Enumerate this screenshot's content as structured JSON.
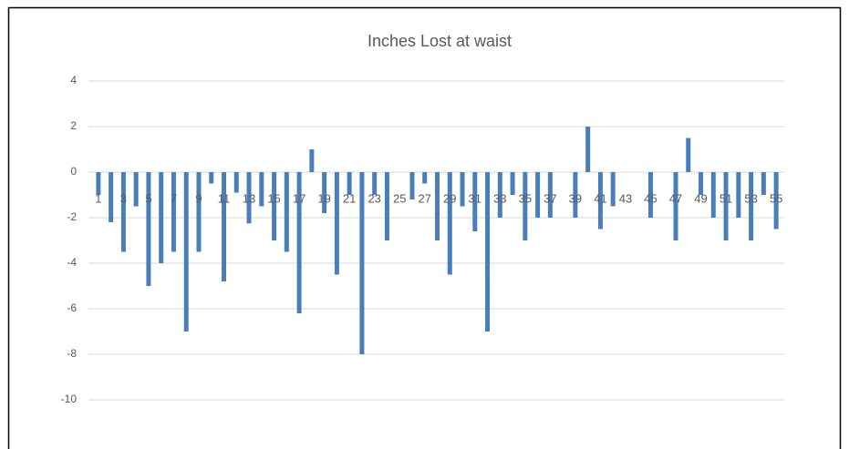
{
  "chart_data": {
    "type": "bar",
    "title": "Inches Lost at waist",
    "categories": [
      "1",
      null,
      "3",
      null,
      "5",
      null,
      "7",
      null,
      "9",
      null,
      "11",
      null,
      "13",
      null,
      "15",
      null,
      "17",
      null,
      "19",
      null,
      "21",
      null,
      "23",
      null,
      "25",
      null,
      "27",
      null,
      "29",
      null,
      "31",
      null,
      "33",
      null,
      "35",
      null,
      "37",
      null,
      "39",
      null,
      "41",
      null,
      "43",
      null,
      "45",
      null,
      "47",
      null,
      "49",
      null,
      "51",
      null,
      "53",
      null,
      "55"
    ],
    "values": [
      -1,
      -2.2,
      -3.5,
      -1.5,
      -5,
      -4,
      -3.5,
      -7,
      -3.5,
      -0.5,
      -4.8,
      -0.9,
      -2.25,
      -1.5,
      -3,
      -3.5,
      -6.2,
      1,
      -1.8,
      -4.5,
      -1,
      -8,
      -1,
      -3,
      0,
      -1.2,
      -0.5,
      -3,
      -4.5,
      -1.5,
      -2.6,
      -7,
      -2,
      -1,
      -3,
      -2,
      -2,
      0,
      -2,
      2,
      -2.5,
      -1.5,
      0,
      0,
      -2,
      0,
      -3,
      1.5,
      -1,
      -2,
      -3,
      -2,
      -3,
      -1,
      -2.5
    ],
    "color": "#4a7ebb",
    "ylim": [
      -10,
      4
    ],
    "yticks": [
      -10,
      -8,
      -6,
      -4,
      -2,
      0,
      2,
      4
    ],
    "grid": true
  }
}
